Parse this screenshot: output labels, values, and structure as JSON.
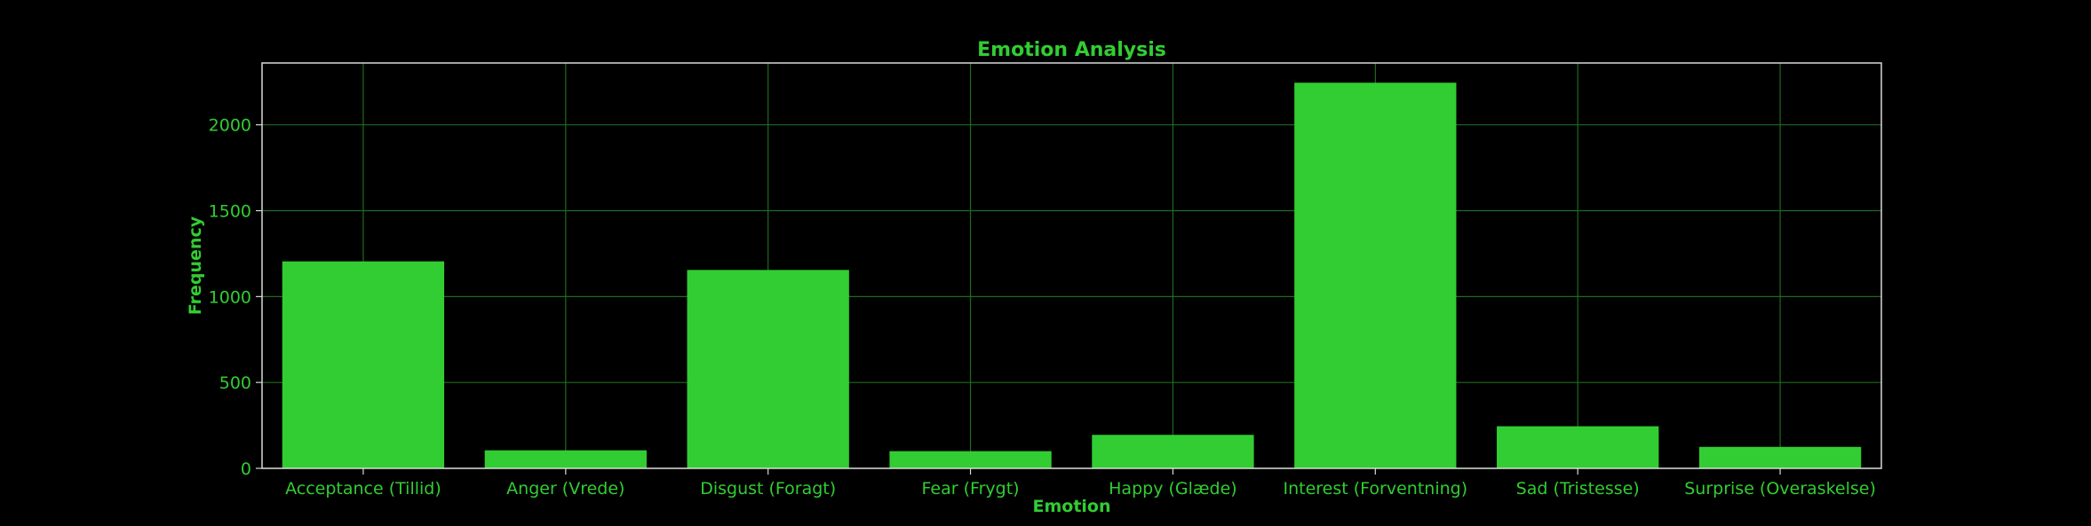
{
  "chart_data": {
    "type": "bar",
    "title": "Emotion Analysis",
    "xlabel": "Emotion",
    "ylabel": "Frequency",
    "categories": [
      "Acceptance (Tillid)",
      "Anger (Vrede)",
      "Disgust (Foragt)",
      "Fear (Frygt)",
      "Happy (Glæde)",
      "Interest (Forventning)",
      "Sad (Tristesse)",
      "Surprise (Overaskelse)"
    ],
    "values": [
      1205,
      105,
      1155,
      100,
      195,
      2245,
      245,
      125
    ],
    "ylim": [
      0,
      2360
    ],
    "yticks": [
      0,
      500,
      1000,
      1500,
      2000
    ],
    "grid": true,
    "colors": {
      "background": "#000000",
      "bar": "#32cd32",
      "text": "#32cd32",
      "grid": "#1f6b1f",
      "frame": "#d9d9d9"
    }
  }
}
